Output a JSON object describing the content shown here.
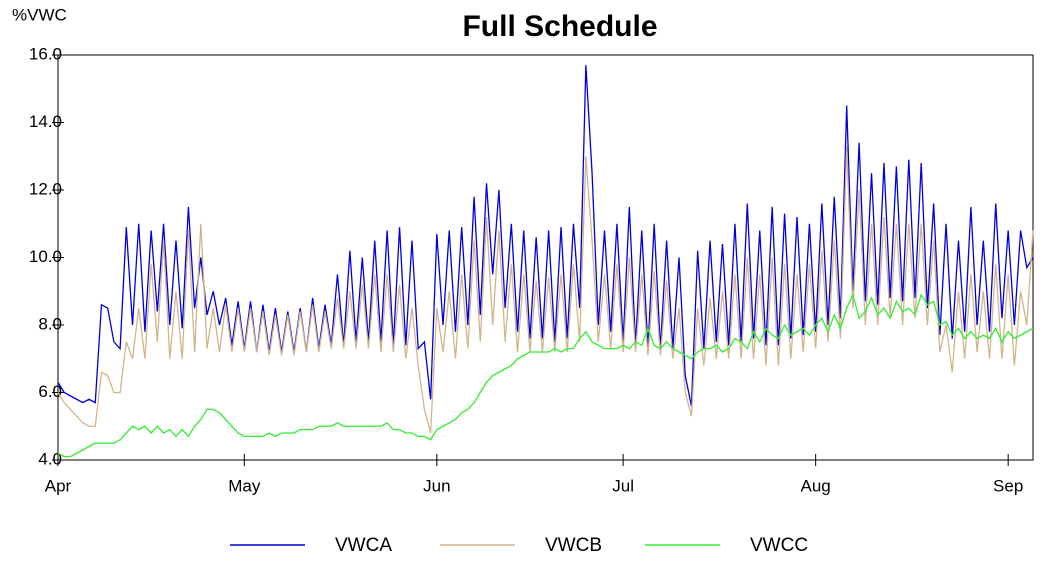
{
  "chart_data": {
    "type": "line",
    "title": "Full Schedule",
    "ylabel": "%VWC",
    "x": [
      0,
      1,
      2,
      3,
      4,
      5,
      6,
      7,
      8,
      9,
      10,
      11,
      12,
      13,
      14,
      15,
      16,
      17,
      18,
      19,
      20,
      21,
      22,
      23,
      24,
      25,
      26,
      27,
      28,
      29,
      30,
      31,
      32,
      33,
      34,
      35,
      36,
      37,
      38,
      39,
      40,
      41,
      42,
      43,
      44,
      45,
      46,
      47,
      48,
      49,
      50,
      51,
      52,
      53,
      54,
      55,
      56,
      57,
      58,
      59,
      60,
      61,
      62,
      63,
      64,
      65,
      66,
      67,
      68,
      69,
      70,
      71,
      72,
      73,
      74,
      75,
      76,
      77,
      78,
      79,
      80,
      81,
      82,
      83,
      84,
      85,
      86,
      87,
      88,
      89,
      90,
      91,
      92,
      93,
      94,
      95,
      96,
      97,
      98,
      99,
      100,
      101,
      102,
      103,
      104,
      105,
      106,
      107,
      108,
      109,
      110,
      111,
      112,
      113,
      114,
      115,
      116,
      117,
      118,
      119,
      120,
      121,
      122,
      123,
      124,
      125,
      126,
      127,
      128,
      129,
      130,
      131,
      132,
      133,
      134,
      135,
      136,
      137,
      138,
      139,
      140,
      141,
      142,
      143,
      144,
      145,
      146,
      147,
      148,
      149,
      150,
      151,
      152,
      153,
      154,
      155,
      156,
      157
    ],
    "series": [
      {
        "name": "VWCA",
        "color": "#0000dd",
        "values": [
          6.3,
          6.0,
          5.9,
          5.8,
          5.7,
          5.8,
          5.7,
          8.6,
          8.5,
          7.5,
          7.3,
          10.9,
          8.0,
          11.0,
          7.8,
          10.8,
          8.4,
          11.0,
          8.0,
          10.5,
          7.9,
          11.5,
          8.5,
          10.0,
          8.3,
          9.0,
          8.0,
          8.8,
          7.4,
          8.7,
          7.3,
          8.7,
          7.2,
          8.6,
          7.2,
          8.5,
          7.2,
          8.4,
          7.2,
          8.5,
          7.2,
          8.8,
          7.3,
          8.6,
          7.4,
          9.5,
          7.4,
          10.2,
          7.5,
          10.0,
          7.5,
          10.5,
          7.5,
          10.8,
          7.4,
          10.9,
          7.4,
          10.5,
          7.3,
          7.5,
          5.8,
          10.7,
          8.0,
          10.8,
          7.8,
          10.9,
          8.0,
          11.8,
          8.3,
          12.2,
          9.5,
          12.0,
          8.5,
          11.0,
          7.8,
          10.8,
          7.6,
          10.6,
          7.6,
          10.8,
          7.5,
          10.9,
          7.6,
          11.0,
          8.5,
          15.7,
          12.5,
          8.0,
          10.8,
          7.8,
          11.0,
          7.5,
          11.5,
          7.4,
          10.8,
          7.3,
          11.0,
          7.3,
          10.5,
          7.3,
          10.0,
          6.5,
          5.6,
          10.2,
          7.3,
          10.5,
          7.5,
          10.4,
          7.4,
          11.0,
          7.5,
          11.6,
          7.6,
          10.8,
          7.4,
          11.5,
          7.4,
          11.3,
          7.6,
          11.2,
          7.7,
          11.0,
          7.8,
          11.6,
          8.0,
          11.8,
          8.2,
          14.5,
          9.0,
          13.4,
          8.7,
          12.5,
          8.6,
          12.8,
          8.8,
          12.7,
          8.7,
          12.9,
          8.8,
          12.8,
          8.5,
          11.6,
          7.7,
          11.0,
          7.6,
          10.5,
          7.8,
          11.5,
          8.0,
          10.5,
          7.8,
          11.6,
          8.2,
          10.8,
          8.0,
          10.8,
          9.7,
          10.0
        ]
      },
      {
        "name": "VWCB",
        "color": "#d2b48c",
        "values": [
          6.0,
          5.7,
          5.5,
          5.3,
          5.1,
          5.0,
          5.0,
          6.6,
          6.5,
          6.0,
          6.0,
          7.5,
          7.0,
          8.5,
          7.0,
          9.8,
          7.5,
          10.5,
          7.0,
          9.0,
          7.0,
          10.8,
          7.2,
          11.0,
          7.3,
          8.5,
          7.2,
          8.6,
          7.2,
          8.5,
          7.2,
          8.5,
          7.2,
          8.4,
          7.1,
          8.3,
          7.1,
          8.3,
          7.1,
          8.4,
          7.2,
          8.6,
          7.2,
          8.4,
          7.3,
          8.8,
          7.3,
          9.0,
          7.3,
          9.2,
          7.3,
          9.5,
          7.2,
          9.5,
          7.2,
          9.2,
          7.0,
          8.5,
          6.8,
          5.5,
          4.8,
          8.5,
          7.2,
          9.0,
          7.0,
          9.5,
          7.3,
          10.5,
          7.5,
          11.2,
          8.0,
          10.8,
          7.5,
          9.8,
          7.2,
          9.5,
          7.2,
          9.3,
          7.2,
          9.4,
          7.2,
          9.5,
          7.2,
          9.8,
          7.5,
          13.0,
          10.5,
          7.5,
          9.5,
          7.3,
          9.8,
          7.2,
          10.0,
          7.2,
          9.5,
          7.1,
          9.6,
          7.1,
          9.3,
          7.0,
          8.5,
          6.0,
          5.3,
          8.5,
          6.8,
          8.8,
          7.0,
          9.0,
          7.0,
          9.5,
          7.0,
          10.0,
          7.0,
          9.5,
          6.8,
          10.0,
          6.8,
          9.8,
          7.0,
          9.5,
          7.2,
          9.8,
          7.3,
          10.2,
          7.5,
          10.5,
          7.6,
          13.3,
          8.5,
          12.0,
          8.0,
          11.0,
          8.0,
          11.2,
          8.2,
          11.0,
          8.0,
          11.0,
          8.2,
          11.0,
          8.0,
          10.5,
          7.2,
          8.0,
          6.6,
          9.0,
          7.0,
          9.5,
          7.2,
          9.0,
          7.0,
          9.8,
          7.0,
          9.5,
          6.8,
          9.0,
          8.0,
          10.8
        ]
      },
      {
        "name": "VWCC",
        "color": "#33ee33",
        "values": [
          4.2,
          4.1,
          4.1,
          4.2,
          4.3,
          4.4,
          4.5,
          4.5,
          4.5,
          4.5,
          4.6,
          4.8,
          5.0,
          4.9,
          5.0,
          4.8,
          5.0,
          4.8,
          4.9,
          4.7,
          4.9,
          4.7,
          5.0,
          5.2,
          5.5,
          5.5,
          5.4,
          5.2,
          5.0,
          4.8,
          4.7,
          4.7,
          4.7,
          4.7,
          4.8,
          4.7,
          4.8,
          4.8,
          4.8,
          4.9,
          4.9,
          4.9,
          5.0,
          5.0,
          5.0,
          5.1,
          5.0,
          5.0,
          5.0,
          5.0,
          5.0,
          5.0,
          5.0,
          5.1,
          4.9,
          4.9,
          4.8,
          4.8,
          4.7,
          4.7,
          4.6,
          4.9,
          5.0,
          5.1,
          5.2,
          5.4,
          5.5,
          5.7,
          6.0,
          6.3,
          6.5,
          6.6,
          6.7,
          6.8,
          7.0,
          7.1,
          7.2,
          7.2,
          7.2,
          7.2,
          7.3,
          7.2,
          7.3,
          7.3,
          7.6,
          7.8,
          7.5,
          7.4,
          7.3,
          7.3,
          7.3,
          7.4,
          7.3,
          7.5,
          7.4,
          7.9,
          7.4,
          7.3,
          7.5,
          7.3,
          7.2,
          7.1,
          7.0,
          7.2,
          7.3,
          7.3,
          7.4,
          7.2,
          7.3,
          7.6,
          7.5,
          7.3,
          7.8,
          7.5,
          7.9,
          7.7,
          7.6,
          8.0,
          7.7,
          7.8,
          7.9,
          7.7,
          8.0,
          8.2,
          7.8,
          8.3,
          7.9,
          8.5,
          8.9,
          8.2,
          8.4,
          8.8,
          8.3,
          8.5,
          8.2,
          8.7,
          8.4,
          8.5,
          8.3,
          8.9,
          8.6,
          8.7,
          8.0,
          8.1,
          7.7,
          7.9,
          7.6,
          7.8,
          7.6,
          7.7,
          7.6,
          7.9,
          7.5,
          7.8,
          7.6,
          7.7,
          7.8,
          7.9
        ]
      }
    ],
    "xlim": [
      0,
      157
    ],
    "xticks": [
      {
        "value": 0,
        "label": "Apr"
      },
      {
        "value": 30,
        "label": "May"
      },
      {
        "value": 61,
        "label": "Jun"
      },
      {
        "value": 91,
        "label": "Jul"
      },
      {
        "value": 122,
        "label": "Aug"
      },
      {
        "value": 153,
        "label": "Sep"
      }
    ],
    "ylim": [
      4,
      16
    ],
    "yticks": [
      {
        "value": 4,
        "label": "4.0"
      },
      {
        "value": 6,
        "label": "6.0"
      },
      {
        "value": 8,
        "label": "8.0"
      },
      {
        "value": 10,
        "label": "10.0"
      },
      {
        "value": 12,
        "label": "12.0"
      },
      {
        "value": 14,
        "label": "14.0"
      },
      {
        "value": 16,
        "label": "16.0"
      }
    ],
    "legend": "bottom"
  }
}
